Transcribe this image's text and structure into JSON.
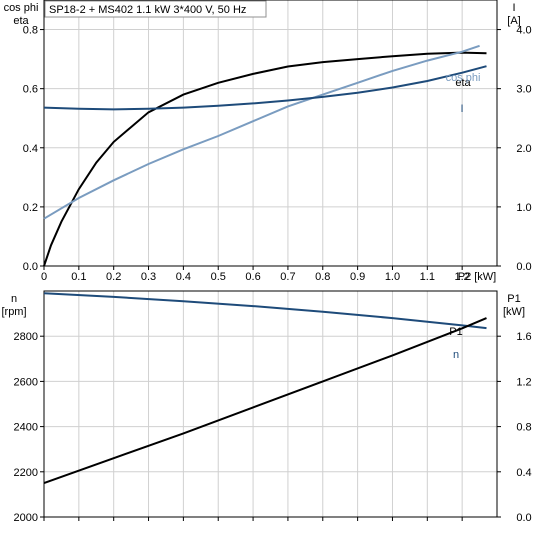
{
  "chart_data": [
    {
      "type": "line",
      "title": "SP18-2 + MS402   1.1 kW   3*400 V, 50 Hz",
      "xlabel": "P2 [kW]",
      "ylabel_left": [
        "cos phi",
        "eta"
      ],
      "ylabel_right": [
        "I",
        "[A]"
      ],
      "xlim": [
        0,
        1.3
      ],
      "ylim_left": [
        0,
        0.9
      ],
      "ylim_right": [
        0,
        4.5
      ],
      "x_ticks": [
        "0",
        "0.1",
        "0.2",
        "0.3",
        "0.4",
        "0.5",
        "0.6",
        "0.7",
        "0.8",
        "0.9",
        "1.0",
        "1.1",
        "1.2"
      ],
      "x_tick_values": [
        0,
        0.1,
        0.2,
        0.3,
        0.4,
        0.5,
        0.6,
        0.7,
        0.8,
        0.9,
        1.0,
        1.1,
        1.2
      ],
      "y_ticks_left": [
        "0.0",
        "0.2",
        "0.4",
        "0.6",
        "0.8"
      ],
      "y_tick_values_left": [
        0,
        0.2,
        0.4,
        0.6,
        0.8
      ],
      "y_ticks_right": [
        "0.0",
        "1.0",
        "2.0",
        "3.0",
        "4.0"
      ],
      "y_tick_values_right": [
        0,
        1,
        2,
        3,
        4
      ],
      "grid": true,
      "series": [
        {
          "name": "eta",
          "axis": "left",
          "color": "#000000",
          "x": [
            0.0,
            0.02,
            0.05,
            0.1,
            0.15,
            0.2,
            0.3,
            0.4,
            0.5,
            0.6,
            0.7,
            0.8,
            0.9,
            1.0,
            1.1,
            1.2,
            1.27
          ],
          "y": [
            0.0,
            0.07,
            0.15,
            0.26,
            0.35,
            0.42,
            0.52,
            0.58,
            0.62,
            0.65,
            0.675,
            0.69,
            0.7,
            0.71,
            0.718,
            0.722,
            0.72
          ]
        },
        {
          "name": "cos phi",
          "axis": "left",
          "color": "#7a9cc0",
          "x": [
            0.0,
            0.1,
            0.2,
            0.3,
            0.4,
            0.5,
            0.6,
            0.7,
            0.8,
            0.9,
            1.0,
            1.1,
            1.2,
            1.25
          ],
          "y": [
            0.16,
            0.23,
            0.29,
            0.345,
            0.395,
            0.44,
            0.49,
            0.54,
            0.58,
            0.62,
            0.66,
            0.695,
            0.725,
            0.745
          ]
        },
        {
          "name": "I",
          "axis": "right",
          "color": "#1e4b7a",
          "x": [
            0.0,
            0.1,
            0.2,
            0.3,
            0.4,
            0.5,
            0.6,
            0.7,
            0.8,
            0.9,
            1.0,
            1.1,
            1.2,
            1.27
          ],
          "y": [
            2.68,
            2.66,
            2.65,
            2.66,
            2.68,
            2.71,
            2.75,
            2.8,
            2.86,
            2.93,
            3.02,
            3.13,
            3.27,
            3.38
          ]
        }
      ]
    },
    {
      "type": "line",
      "xlim": [
        0,
        1.3
      ],
      "ylabel_left": [
        "n",
        "[rpm]"
      ],
      "ylabel_right": [
        "P1",
        "[kW]"
      ],
      "ylim_left": [
        2000,
        3000
      ],
      "ylim_right": [
        0,
        2.0
      ],
      "y_ticks_left": [
        "2000",
        "2200",
        "2400",
        "2600",
        "2800"
      ],
      "y_tick_values_left": [
        2000,
        2200,
        2400,
        2600,
        2800
      ],
      "y_ticks_right": [
        "0.0",
        "0.4",
        "0.8",
        "1.2",
        "1.6"
      ],
      "y_tick_values_right": [
        0,
        0.4,
        0.8,
        1.2,
        1.6
      ],
      "grid": true,
      "series": [
        {
          "name": "n",
          "axis": "left",
          "color": "#1e4b7a",
          "x": [
            0.0,
            0.2,
            0.4,
            0.6,
            0.8,
            1.0,
            1.2,
            1.27
          ],
          "y": [
            2990,
            2974,
            2955,
            2933,
            2908,
            2880,
            2848,
            2836
          ]
        },
        {
          "name": "P1",
          "axis": "right",
          "color": "#000000",
          "x": [
            0.0,
            0.2,
            0.4,
            0.6,
            0.8,
            1.0,
            1.2,
            1.27
          ],
          "y": [
            0.3,
            0.52,
            0.74,
            0.97,
            1.2,
            1.43,
            1.67,
            1.76
          ]
        }
      ]
    }
  ]
}
